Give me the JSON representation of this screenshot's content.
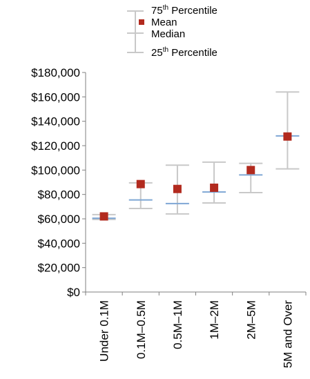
{
  "chart_data": {
    "type": "box",
    "categories": [
      "Under 0.1M",
      "0.1M–0.5M",
      "0.5M–1M",
      "1M–2M",
      "2M–5M",
      "5M and Over"
    ],
    "series": [
      {
        "name": "75th Percentile",
        "values": [
          63500,
          89500,
          104000,
          106500,
          105500,
          164000
        ]
      },
      {
        "name": "Mean",
        "values": [
          62000,
          88500,
          84500,
          85500,
          100000,
          127500
        ]
      },
      {
        "name": "Median",
        "values": [
          60500,
          75500,
          72500,
          82000,
          96000,
          128000
        ]
      },
      {
        "name": "25th Percentile",
        "values": [
          59500,
          68500,
          64000,
          73000,
          81500,
          101000
        ]
      }
    ],
    "y_ticks": [
      "$0",
      "$20,000",
      "$40,000",
      "$60,000",
      "$80,000",
      "$100,000",
      "$120,000",
      "$140,000",
      "$160,000",
      "$180,000"
    ],
    "ylim": [
      0,
      180000
    ],
    "legend": {
      "p75_label": "75",
      "p75_sup": "th",
      "p75_rest": " Percentile",
      "mean_label": "Mean",
      "median_label": "Median",
      "p25_label": "25",
      "p25_sup": "th",
      "p25_rest": " Percentile",
      "placement": "top"
    },
    "colors": {
      "whisker": "#c8c8c8",
      "mean": "#b22a1e",
      "median": "#7ea6d4",
      "axis": "#7f7f7f"
    }
  }
}
